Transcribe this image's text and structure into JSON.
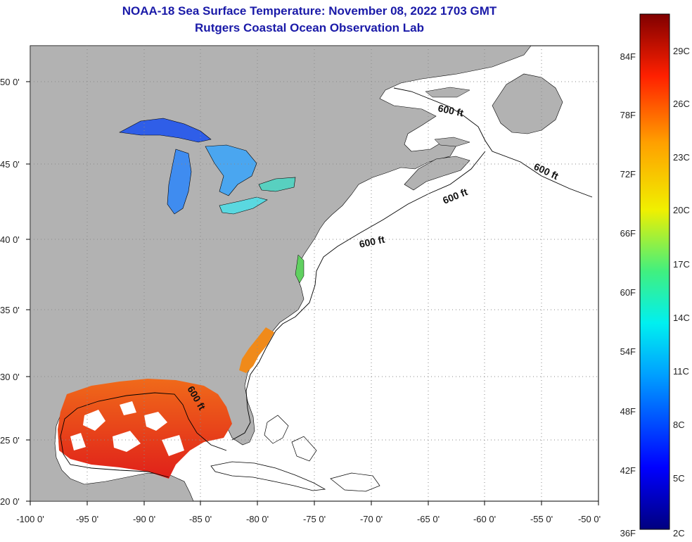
{
  "header": {
    "title": "NOAA-18 Sea Surface Temperature:  November 08, 2022 1703 GMT",
    "subtitle": "Rutgers Coastal Ocean Observation Lab"
  },
  "axes": {
    "lon_labels": [
      "-100 0'",
      "-95 0'",
      "-90 0'",
      "-85 0'",
      "-80 0'",
      "-75 0'",
      "-70 0'",
      "-65 0'",
      "-60 0'",
      "-55 0'",
      "-50 0'"
    ],
    "lat_labels": [
      "50 0'",
      "45 0'",
      "40 0'",
      "35 0'",
      "30 0'",
      "25 0'",
      "20 0'"
    ]
  },
  "contour_label": "600 ft",
  "colorbar": {
    "fahrenheit_labels": [
      "84F",
      "78F",
      "72F",
      "66F",
      "60F",
      "54F",
      "48F",
      "42F",
      "36F"
    ],
    "celsius_labels": [
      "29C",
      "26C",
      "23C",
      "20C",
      "17C",
      "14C",
      "11C",
      "8C",
      "5C",
      "2C"
    ]
  },
  "colors": {
    "land": "#b2b2b2",
    "ocean": "#ffffff",
    "title": "#1a1aa8",
    "warm_sst": "#e8401a",
    "cool_sst": "#2a7cf0"
  }
}
